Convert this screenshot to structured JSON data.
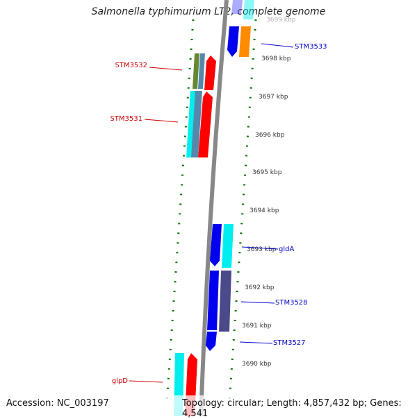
{
  "title": "Salmonella typhimurium LT2, complete genome",
  "footer": {
    "accession": "Accession: NC_003197",
    "topology": "Topology: circular; Length: 4,857,432 bp; Genes: 4,541"
  },
  "colors": {
    "red": "#ff0000",
    "blue": "#0000ee",
    "cyan": "#00eeee",
    "orange": "#ff8c00",
    "olive": "#668833",
    "slate": "#4a4a8a",
    "steel": "#5588aa",
    "backbone": "#888888",
    "ticks": "#007700",
    "label_red": "#cc0000",
    "label_blue": "#0000cc"
  },
  "kbp_ticks": [
    "3699 kbp",
    "3698 kbp",
    "3697 kbp",
    "3696 kbp",
    "3695 kbp",
    "3694 kbp",
    "3693 kbp",
    "3692 kbp",
    "3691 kbp",
    "3690 kbp"
  ],
  "gene_labels": [
    {
      "name": "STM3533",
      "side": "right",
      "color": "blue"
    },
    {
      "name": "STM3532",
      "side": "left",
      "color": "red"
    },
    {
      "name": "STM3531",
      "side": "left",
      "color": "red"
    },
    {
      "name": "gldA",
      "side": "right",
      "color": "blue"
    },
    {
      "name": "STM3528",
      "side": "right",
      "color": "blue"
    },
    {
      "name": "STM3527",
      "side": "right",
      "color": "blue"
    },
    {
      "name": "glpD",
      "side": "left",
      "color": "red"
    }
  ]
}
